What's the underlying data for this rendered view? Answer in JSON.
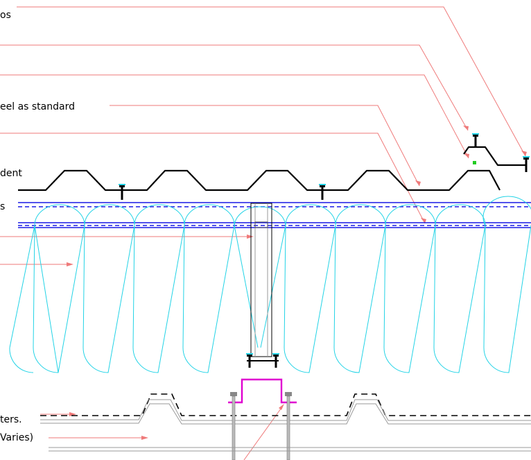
{
  "labels": {
    "l1": "os",
    "l2": "eel as standard",
    "l3": "dent",
    "l4": "s",
    "l5": "ters.",
    "l6": "Varies)"
  },
  "colors": {
    "leader": "#ef7a7a",
    "profile": "#000000",
    "membrane": "#1a1ae6",
    "insulation": "#22d3e6",
    "bracket": "#e000d0",
    "marker": "#22cc22"
  }
}
